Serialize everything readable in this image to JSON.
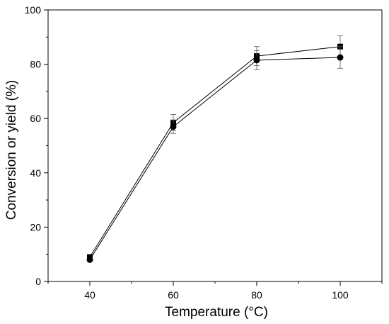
{
  "chart_data": {
    "type": "line",
    "title": "",
    "xlabel": "Temperature (°C)",
    "ylabel": "Conversion or yield (%)",
    "xlim": [
      30,
      110
    ],
    "ylim": [
      0,
      100
    ],
    "x_ticks": [
      40,
      60,
      80,
      100
    ],
    "y_ticks": [
      0,
      20,
      40,
      60,
      80,
      100
    ],
    "x_minor_ticks": [
      30,
      50,
      70,
      90,
      110
    ],
    "y_minor_ticks": [
      10,
      30,
      50,
      70,
      90
    ],
    "grid": false,
    "legend": "none",
    "x": [
      40,
      60,
      80,
      100
    ],
    "series": [
      {
        "marker": "square",
        "values": [
          9,
          58.5,
          83,
          86.5
        ],
        "error": [
          0,
          3,
          3.5,
          4
        ],
        "color": "#000000"
      },
      {
        "marker": "circle",
        "values": [
          8,
          57,
          81.5,
          82.5
        ],
        "error": [
          0,
          2.5,
          3.5,
          4
        ],
        "color": "#000000"
      }
    ]
  }
}
